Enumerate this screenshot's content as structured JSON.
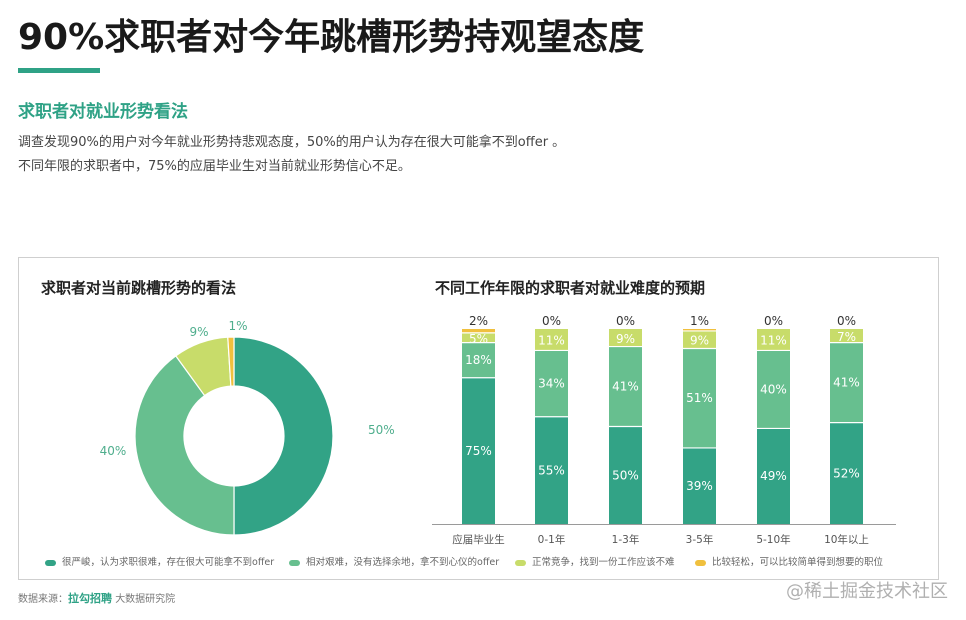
{
  "header": {
    "title": "90%求职者对今年跳槽形势持观望态度"
  },
  "section": {
    "subtitle": "求职者对就业形势看法",
    "desc_line1": "调查发现90%的用户对今年就业形势持悲观态度，50%的用户认为存在很大可能拿不到offer 。",
    "desc_line2": "不同年限的求职者中，75%的应届毕业生对当前就业形势信心不足。"
  },
  "colors": {
    "accent": "#2fa286",
    "severe": "#32a386",
    "hard": "#67bf8f",
    "normal": "#c8dc6a",
    "easy": "#f0c03e"
  },
  "legend": [
    {
      "label": "很严峻，认为求职很难，存在很大可能拿不到offer",
      "color": "#32a386"
    },
    {
      "label": "相对艰难，没有选择余地，拿不到心仪的offer",
      "color": "#67bf8f"
    },
    {
      "label": "正常竞争，找到一份工作应该不难",
      "color": "#c8dc6a"
    },
    {
      "label": "比较轻松，可以比较简单得到想要的职位",
      "color": "#f0c03e"
    }
  ],
  "footer": {
    "source_prefix": "数据来源：",
    "brand": "拉勾招聘",
    "source_suffix": "大数据研究院",
    "watermark": "@稀土掘金技术社区"
  },
  "chart_data": [
    {
      "type": "pie",
      "subtype": "donut",
      "title": "求职者对当前跳槽形势的看法",
      "categories": [
        "很严峻，认为求职很难，存在很大可能拿不到offer",
        "相对艰难，没有选择余地，拿不到心仪的offer",
        "正常竞争，找到一份工作应该不难",
        "比较轻松，可以比较简单得到想要的职位"
      ],
      "values": [
        50,
        40,
        9,
        1
      ],
      "labels": [
        "50%",
        "40%",
        "9%",
        "1%"
      ],
      "colors": [
        "#32a386",
        "#67bf8f",
        "#c8dc6a",
        "#f0c03e"
      ],
      "legend_position": "bottom"
    },
    {
      "type": "bar",
      "subtype": "stacked-100",
      "title": "不同工作年限的求职者对就业难度的预期",
      "categories": [
        "应届毕业生",
        "0-1年",
        "1-3年",
        "3-5年",
        "5-10年",
        "10年以上"
      ],
      "series": [
        {
          "name": "很严峻，认为求职很难，存在很大可能拿不到offer",
          "color": "#32a386",
          "values": [
            75,
            55,
            50,
            39,
            49,
            52
          ]
        },
        {
          "name": "相对艰难，没有选择余地，拿不到心仪的offer",
          "color": "#67bf8f",
          "values": [
            18,
            34,
            41,
            51,
            40,
            41
          ]
        },
        {
          "name": "正常竞争，找到一份工作应该不难",
          "color": "#c8dc6a",
          "values": [
            5,
            11,
            9,
            9,
            11,
            7
          ]
        },
        {
          "name": "比较轻松，可以比较简单得到想要的职位",
          "color": "#f0c03e",
          "values": [
            2,
            0,
            0,
            1,
            0,
            0
          ]
        }
      ],
      "xlabel": "",
      "ylabel": "",
      "ylim": [
        0,
        100
      ],
      "grid": false,
      "legend_position": "bottom"
    }
  ]
}
